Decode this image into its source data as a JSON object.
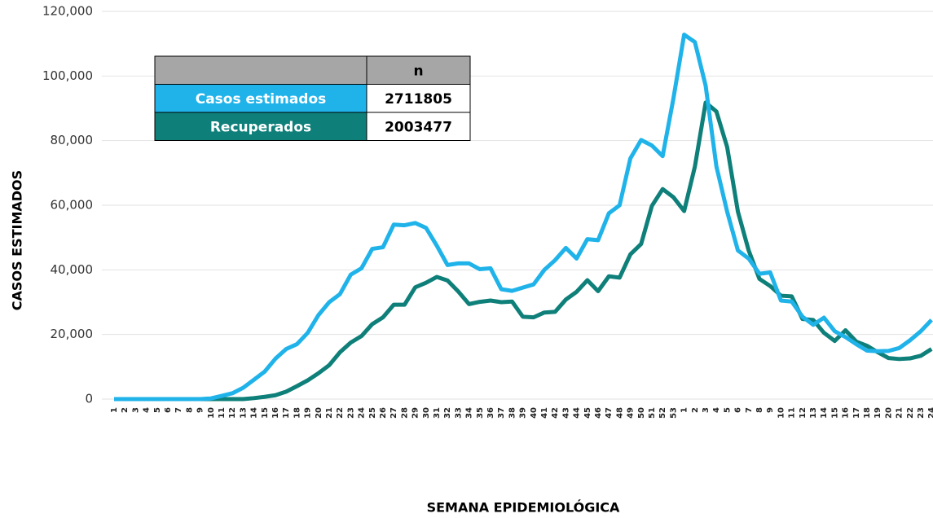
{
  "chart_data": {
    "type": "line",
    "y_label": "CASOS ESTIMADOS",
    "x_label": "SEMANA EPIDEMIOLÓGICA",
    "categories": [
      "1",
      "2",
      "3",
      "4",
      "5",
      "6",
      "7",
      "8",
      "9",
      "10",
      "11",
      "12",
      "13",
      "14",
      "15",
      "16",
      "17",
      "18",
      "19",
      "20",
      "21",
      "22",
      "23",
      "24",
      "25",
      "26",
      "27",
      "28",
      "29",
      "30",
      "31",
      "32",
      "33",
      "34",
      "35",
      "36",
      "37",
      "38",
      "39",
      "40",
      "41",
      "42",
      "43",
      "44",
      "45",
      "46",
      "47",
      "48",
      "49",
      "50",
      "51",
      "52",
      "53",
      "1",
      "2",
      "3",
      "4",
      "5",
      "6",
      "7",
      "8",
      "9",
      "10",
      "11",
      "12",
      "13",
      "14",
      "15",
      "16",
      "17",
      "18",
      "19",
      "20",
      "21",
      "22",
      "23",
      "24"
    ],
    "series": [
      {
        "name": "Casos estimados",
        "color": "#1fb3ea",
        "total": 2711805,
        "values": [
          0,
          0,
          0,
          0,
          0,
          0,
          0,
          0,
          0,
          200,
          1000,
          1800,
          3500,
          6000,
          8500,
          12500,
          15500,
          17000,
          20500,
          26000,
          30000,
          32500,
          38500,
          40500,
          46500,
          47000,
          54000,
          53800,
          54500,
          53000,
          47500,
          41500,
          42000,
          42000,
          40200,
          40500,
          34000,
          33500,
          34500,
          35500,
          40000,
          43000,
          46800,
          43500,
          49500,
          49200,
          57500,
          60000,
          74500,
          80200,
          78500,
          75200,
          93000,
          112800,
          110500,
          97000,
          72000,
          58000,
          46000,
          43500,
          38800,
          39200,
          30500,
          30200,
          25500,
          23000,
          25200,
          21000,
          19200,
          17000,
          15000,
          14800,
          14900,
          15800,
          18200,
          21000,
          24500
        ]
      },
      {
        "name": "Recuperados",
        "color": "#0e7f79",
        "total": 2003477,
        "values": [
          0,
          0,
          0,
          0,
          0,
          0,
          0,
          0,
          0,
          0,
          0,
          0,
          0,
          300,
          700,
          1200,
          2300,
          4000,
          5800,
          8000,
          10500,
          14500,
          17500,
          19500,
          23200,
          25300,
          29200,
          29200,
          34600,
          36000,
          37800,
          36700,
          33300,
          29400,
          30100,
          30500,
          30000,
          30200,
          25500,
          25300,
          26800,
          27000,
          30800,
          33200,
          36800,
          33400,
          38000,
          37600,
          44800,
          48000,
          59800,
          65000,
          62500,
          58200,
          72000,
          91800,
          89000,
          78000,
          58000,
          46000,
          37200,
          35000,
          32000,
          31800,
          24800,
          24500,
          20500,
          18000,
          21300,
          17800,
          16500,
          14500,
          12700,
          12400,
          12600,
          13400,
          15500
        ]
      }
    ],
    "table_header": "n",
    "ylim": [
      0,
      120000
    ],
    "yticks": [
      0,
      {
        "value": 20000,
        "label": "20,000"
      },
      {
        "value": 40000,
        "label": "40,000"
      },
      {
        "value": 60000,
        "label": "60,000"
      },
      {
        "value": 80000,
        "label": "80,000"
      },
      {
        "value": 100000,
        "label": "100,000"
      },
      {
        "value": 120000,
        "label": "120,000"
      }
    ],
    "grid": true
  }
}
